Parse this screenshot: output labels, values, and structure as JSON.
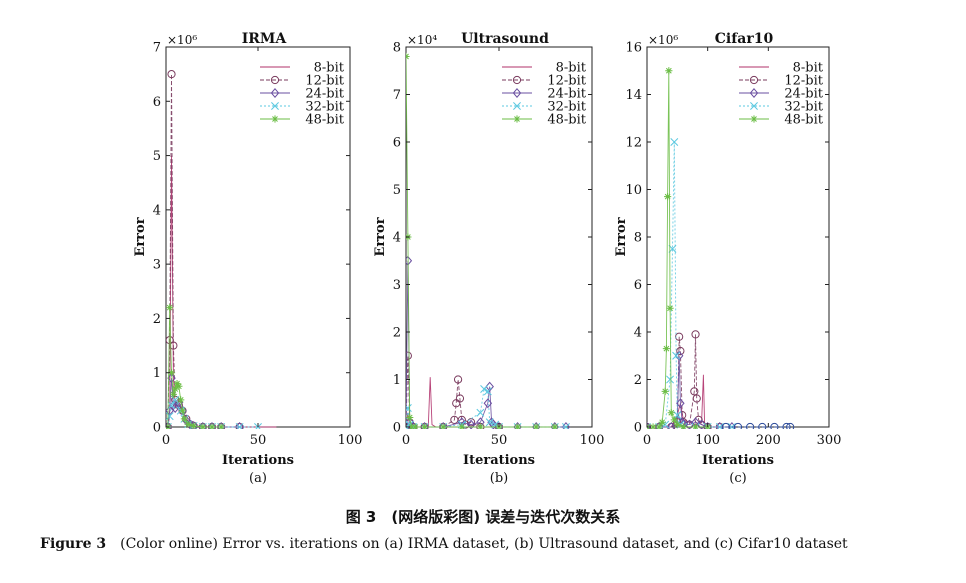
{
  "chart_data": [
    {
      "type": "line",
      "title": "IRMA",
      "xlabel": "Iterations",
      "ylabel": "Error",
      "panel_label": "(a)",
      "multiplier": "×10⁶",
      "xlim": [
        0,
        100
      ],
      "ylim": [
        0,
        7
      ],
      "xticks": [
        "0",
        "50",
        "100"
      ],
      "yticks": [
        "0",
        "1",
        "2",
        "3",
        "4",
        "5",
        "6",
        "7"
      ],
      "legend": "top-right",
      "series": [
        {
          "name": "8-bit",
          "color": "#b0306a",
          "marker": "none",
          "x": [
            1,
            2,
            3,
            4,
            5,
            7,
            9,
            11,
            13,
            15,
            20,
            25,
            30,
            40,
            50,
            60
          ],
          "y": [
            0,
            0.2,
            5.0,
            0.9,
            0.4,
            0.45,
            0.3,
            0.15,
            0.06,
            0.02,
            0.01,
            0,
            0,
            0,
            0,
            0
          ]
        },
        {
          "name": "12-bit",
          "color": "#7a3b5e",
          "marker": "circle",
          "x": [
            1,
            2,
            3,
            4,
            5,
            7,
            9,
            11,
            13,
            15,
            20,
            25,
            30,
            40
          ],
          "y": [
            0,
            1.6,
            6.5,
            1.5,
            0.5,
            0.4,
            0.3,
            0.15,
            0.05,
            0.02,
            0,
            0,
            0,
            0
          ]
        },
        {
          "name": "24-bit",
          "color": "#6a4fa0",
          "marker": "diamond",
          "x": [
            1,
            2,
            3,
            4,
            5,
            7,
            9,
            11,
            13,
            15,
            20,
            25,
            30,
            40
          ],
          "y": [
            0,
            0.3,
            0.9,
            0.4,
            0.35,
            0.45,
            0.3,
            0.12,
            0.05,
            0.02,
            0,
            0,
            0,
            0
          ]
        },
        {
          "name": "32-bit",
          "color": "#5bc8e0",
          "marker": "x",
          "x": [
            1,
            2,
            3,
            5,
            8,
            10,
            12,
            15,
            20,
            25,
            30,
            40,
            50
          ],
          "y": [
            0,
            0.2,
            0.4,
            0.5,
            0.3,
            0.15,
            0.05,
            0.02,
            0,
            0,
            0,
            0,
            0
          ]
        },
        {
          "name": "48-bit",
          "color": "#6bbd45",
          "marker": "star",
          "x": [
            1,
            2,
            3,
            4,
            5,
            6,
            7,
            8,
            9,
            10,
            12,
            15,
            20,
            25,
            30
          ],
          "y": [
            0,
            2.2,
            1.0,
            0.6,
            0.7,
            0.8,
            0.75,
            0.5,
            0.3,
            0.15,
            0.05,
            0.02,
            0,
            0,
            0
          ]
        }
      ]
    },
    {
      "type": "line",
      "title": "Ultrasound",
      "xlabel": "Iterations",
      "ylabel": "Error",
      "panel_label": "(b)",
      "multiplier": "×10⁴",
      "xlim": [
        0,
        100
      ],
      "ylim": [
        0,
        8
      ],
      "xticks": [
        "0",
        "50",
        "100"
      ],
      "yticks": [
        "0",
        "1",
        "2",
        "3",
        "4",
        "5",
        "6",
        "7",
        "8"
      ],
      "legend": "top-right",
      "series": [
        {
          "name": "8-bit",
          "color": "#b0306a",
          "marker": "none",
          "x": [
            0,
            1,
            2,
            5,
            10,
            12,
            13,
            14,
            16,
            20,
            30,
            40,
            50
          ],
          "y": [
            0,
            0.3,
            0,
            0,
            0,
            0.02,
            1.05,
            0.05,
            0,
            0,
            0,
            0,
            0
          ]
        },
        {
          "name": "12-bit",
          "color": "#7a3b5e",
          "marker": "circle",
          "x": [
            0,
            1,
            2,
            4,
            10,
            20,
            26,
            27,
            28,
            29,
            30,
            32,
            35,
            40,
            50
          ],
          "y": [
            0,
            1.5,
            0.1,
            0,
            0,
            0,
            0.15,
            0.5,
            1.0,
            0.6,
            0.15,
            0.05,
            0.1,
            0,
            0
          ]
        },
        {
          "name": "24-bit",
          "color": "#6a4fa0",
          "marker": "diamond",
          "x": [
            0,
            1,
            2,
            4,
            10,
            20,
            30,
            35,
            40,
            44,
            45,
            46,
            47,
            50,
            60,
            70,
            80,
            86
          ],
          "y": [
            0,
            3.5,
            0.1,
            0,
            0,
            0,
            0.1,
            0.05,
            0.1,
            0.5,
            0.85,
            0.1,
            0.05,
            0,
            0,
            0,
            0,
            0
          ]
        },
        {
          "name": "32-bit",
          "color": "#5bc8e0",
          "marker": "x",
          "x": [
            0,
            1,
            2,
            4,
            10,
            20,
            30,
            40,
            42,
            44,
            45,
            48,
            50,
            60,
            70,
            80,
            86
          ],
          "y": [
            0,
            0.4,
            0.05,
            0,
            0,
            0,
            0.05,
            0.3,
            0.8,
            0.75,
            0.1,
            0.05,
            0,
            0,
            0,
            0,
            0
          ]
        },
        {
          "name": "48-bit",
          "color": "#6bbd45",
          "marker": "star",
          "x": [
            0,
            1,
            2,
            3,
            5,
            10,
            20,
            30,
            40,
            50,
            60,
            70,
            80
          ],
          "y": [
            7.8,
            4.0,
            0.2,
            0,
            0,
            0,
            0,
            0,
            0,
            0,
            0,
            0,
            0
          ]
        }
      ]
    },
    {
      "type": "line",
      "title": "Cifar10",
      "xlabel": "Iterations",
      "ylabel": "Error",
      "panel_label": "(c)",
      "multiplier": "×10⁶",
      "xlim": [
        0,
        300
      ],
      "ylim": [
        0,
        16
      ],
      "xticks": [
        "0",
        "100",
        "200",
        "300"
      ],
      "yticks": [
        "0",
        "2",
        "4",
        "6",
        "8",
        "10",
        "12",
        "14",
        "16"
      ],
      "legend": "top-right",
      "series": [
        {
          "name": "8-bit",
          "color": "#b0306a",
          "marker": "none",
          "x": [
            0,
            20,
            40,
            50,
            55,
            60,
            80,
            90,
            93,
            95,
            100,
            120
          ],
          "y": [
            0,
            0,
            0,
            0.5,
            1.0,
            0.3,
            0.1,
            0.2,
            2.2,
            0.1,
            0,
            0
          ]
        },
        {
          "name": "12-bit",
          "color": "#7a3b5e",
          "marker": "circle",
          "x": [
            0,
            20,
            40,
            50,
            53,
            55,
            58,
            60,
            70,
            78,
            80,
            82,
            85,
            90,
            100,
            120
          ],
          "y": [
            0,
            0,
            0,
            0.2,
            3.8,
            3.2,
            0.5,
            0.2,
            0.1,
            1.5,
            3.9,
            1.2,
            0.3,
            0.1,
            0,
            0
          ]
        },
        {
          "name": "24-bit",
          "color": "#6a4fa0",
          "marker": "diamond",
          "x": [
            0,
            20,
            40,
            50,
            53,
            55,
            58,
            60,
            70,
            80,
            90,
            100,
            120,
            140
          ],
          "y": [
            0,
            0,
            0,
            0.3,
            3.0,
            1.0,
            0.2,
            0.1,
            0.1,
            0.2,
            0.1,
            0,
            0,
            0
          ]
        },
        {
          "name": "32-bit",
          "color": "#5bc8e0",
          "marker": "x",
          "x": [
            0,
            20,
            30,
            38,
            42,
            45,
            48,
            50,
            55,
            60,
            80,
            100,
            120,
            140
          ],
          "y": [
            0,
            0,
            0.1,
            2.0,
            7.5,
            12.0,
            3.0,
            0.5,
            0.1,
            0,
            0,
            0,
            0,
            0
          ]
        },
        {
          "name": "48-bit",
          "color": "#6bbd45",
          "marker": "star",
          "x": [
            0,
            10,
            20,
            25,
            30,
            32,
            34,
            36,
            38,
            40,
            45,
            50,
            60,
            80,
            100
          ],
          "y": [
            0,
            0,
            0,
            0.2,
            1.5,
            3.3,
            9.7,
            15.0,
            5.0,
            0.6,
            0.3,
            0.1,
            0,
            0,
            0
          ]
        },
        {
          "name": "",
          "color": "#2b4a9a",
          "marker": "circle",
          "x": [
            130,
            150,
            170,
            190,
            210,
            230,
            236
          ],
          "y": [
            0,
            0,
            0,
            0,
            0,
            0,
            0
          ]
        }
      ]
    }
  ],
  "caption": {
    "chinese": "图 3　(网络版彩图) 误差与迭代次数关系",
    "label": "Figure 3",
    "text": "(Color online) Error vs. iterations on (a) IRMA dataset, (b) Ultrasound dataset, and (c) Cifar10 dataset"
  }
}
